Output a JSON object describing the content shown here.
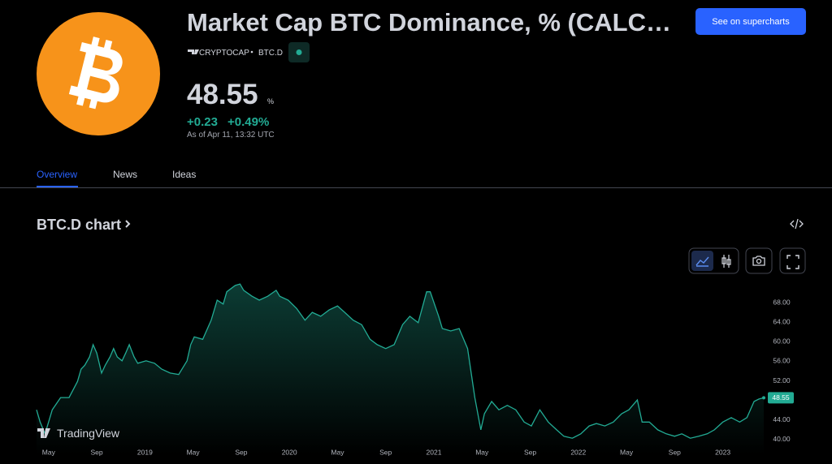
{
  "header": {
    "title": "Market Cap BTC Dominance, % (CALC…",
    "exchange": "CRYPTOCAP",
    "symbol": "BTC.D",
    "button": "See on supercharts"
  },
  "quote": {
    "price": "48.55",
    "unit": "%",
    "change": "+0.23",
    "change_percent": "+0.49%",
    "as_of": "As of Apr 11, 13:32 UTC"
  },
  "tabs": [
    "Overview",
    "News",
    "Ideas"
  ],
  "section_title": "BTC.D chart",
  "brand": "TradingView",
  "chart_data": {
    "type": "line",
    "color": "#22ab94",
    "x": [
      3.0,
      3.3,
      3.7,
      4.0,
      4.3,
      5.0,
      5.7,
      6.4,
      6.7,
      7.0,
      7.4,
      7.7,
      8.0,
      8.4,
      8.7,
      9.1,
      9.4,
      9.7,
      10.1,
      10.4,
      10.7,
      11.1,
      11.4,
      12.1,
      12.8,
      13.4,
      14.1,
      14.8,
      15.5,
      15.8,
      16.1,
      16.8,
      17.5,
      18.0,
      18.5,
      18.8,
      19.5,
      19.9,
      20.2,
      20.9,
      21.5,
      22.2,
      22.9,
      23.2,
      23.9,
      24.6,
      25.3,
      25.9,
      26.6,
      27.3,
      28.0,
      28.6,
      29.3,
      30.0,
      30.7,
      31.3,
      32.0,
      32.7,
      33.4,
      34.0,
      34.7,
      35.4,
      35.7,
      36.4,
      36.7,
      37.4,
      38.1,
      38.8,
      39.4,
      39.9,
      40.2,
      40.8,
      41.4,
      42.1,
      42.8,
      43.5,
      44.1,
      44.8,
      45.5,
      46.2,
      46.8,
      47.5,
      48.2,
      48.9,
      49.5,
      50.2,
      50.9,
      51.6,
      52.2,
      52.9,
      53.3,
      53.9,
      54.6,
      55.3,
      56.0,
      56.6,
      57.3,
      58.0,
      58.7,
      59.3,
      60.0,
      60.7,
      61.4,
      62.0,
      62.6,
      63.0,
      63.4
    ],
    "values": [
      46.1,
      43.6,
      41.2,
      43.6,
      46.1,
      48.6,
      48.6,
      51.9,
      54.4,
      55.2,
      56.9,
      59.4,
      57.7,
      53.6,
      55.2,
      56.9,
      58.6,
      56.9,
      56.1,
      57.7,
      59.4,
      56.9,
      55.6,
      56.1,
      55.6,
      54.4,
      53.6,
      53.3,
      56.1,
      59.4,
      61.0,
      60.5,
      64.4,
      68.5,
      67.7,
      70.2,
      71.5,
      71.8,
      70.5,
      69.3,
      68.5,
      69.3,
      70.5,
      69.3,
      68.5,
      66.8,
      64.4,
      66.0,
      65.2,
      66.5,
      67.3,
      66.0,
      64.4,
      63.5,
      60.5,
      59.4,
      58.6,
      59.4,
      63.5,
      65.2,
      63.9,
      70.2,
      70.2,
      65.2,
      62.7,
      62.2,
      62.7,
      58.6,
      48.6,
      42.0,
      45.3,
      47.8,
      46.1,
      47.0,
      46.1,
      43.6,
      42.8,
      46.1,
      43.6,
      42.0,
      40.7,
      40.3,
      41.2,
      42.8,
      43.3,
      42.8,
      43.6,
      45.3,
      46.1,
      48.1,
      43.6,
      43.6,
      42.0,
      41.2,
      40.7,
      41.2,
      40.3,
      40.7,
      41.2,
      42.0,
      43.6,
      44.5,
      43.6,
      44.5,
      47.8,
      48.3,
      48.55
    ],
    "xlim": [
      3,
      63.4
    ],
    "ylim": [
      37,
      74
    ],
    "xticks": [
      {
        "value": 4,
        "label": "May"
      },
      {
        "value": 8,
        "label": "Sep"
      },
      {
        "value": 12,
        "label": "2019"
      },
      {
        "value": 16,
        "label": "May"
      },
      {
        "value": 20,
        "label": "Sep"
      },
      {
        "value": 24,
        "label": "2020"
      },
      {
        "value": 28,
        "label": "May"
      },
      {
        "value": 32,
        "label": "Sep"
      },
      {
        "value": 36,
        "label": "2021"
      },
      {
        "value": 40,
        "label": "May"
      },
      {
        "value": 44,
        "label": "Sep"
      },
      {
        "value": 48,
        "label": "2022"
      },
      {
        "value": 52,
        "label": "May"
      },
      {
        "value": 56,
        "label": "Sep"
      },
      {
        "value": 60,
        "label": "2023"
      }
    ],
    "yticks": [
      {
        "value": 40,
        "label": "40.00"
      },
      {
        "value": 44,
        "label": "44.00"
      },
      {
        "value": 52,
        "label": "52.00"
      },
      {
        "value": 56,
        "label": "56.00"
      },
      {
        "value": 60,
        "label": "60.00"
      },
      {
        "value": 64,
        "label": "64.00"
      },
      {
        "value": 68,
        "label": "68.00"
      }
    ]
  }
}
